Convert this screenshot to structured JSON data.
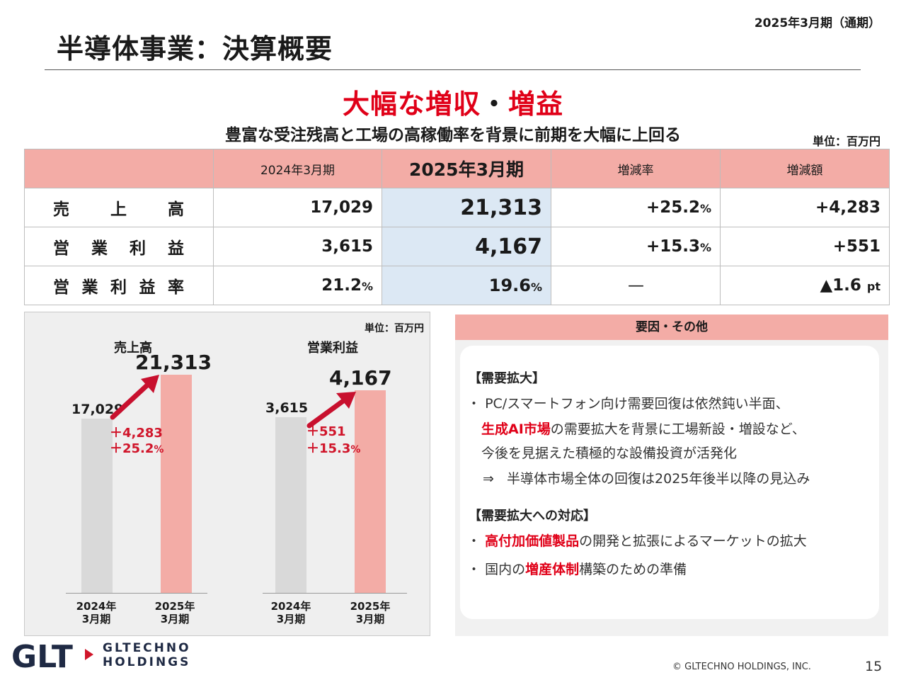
{
  "header": {
    "period": "2025年3月期（通期）",
    "title": "半導体事業：決算概要",
    "headline_part1": "大幅な増収",
    "headline_sep": "・",
    "headline_part2": "増益",
    "subheadline": "豊富な受注残高と工場の高稼働率を背景に前期を大幅に上回る",
    "unit": "単位：百万円"
  },
  "table": {
    "columns": [
      "",
      "2024年3月期",
      "2025年3月期",
      "増減率",
      "増減額"
    ],
    "rows": [
      {
        "label_chars": [
          "売",
          "上",
          "高"
        ],
        "prev": "17,029",
        "cur": "21,313",
        "rate": "+25.2",
        "rate_unit": "%",
        "diff": "+4,283"
      },
      {
        "label_chars": [
          "営",
          "業",
          "利",
          "益"
        ],
        "prev": "3,615",
        "cur": "4,167",
        "rate": "+15.3",
        "rate_unit": "%",
        "diff": "+551"
      },
      {
        "label_chars": [
          "営",
          "業",
          "利",
          "益",
          "率"
        ],
        "prev": "21.2",
        "prev_unit": "%",
        "cur": "19.6",
        "cur_unit": "%",
        "rate": "—",
        "diff": "▲1.6",
        "diff_unit": "pt"
      }
    ]
  },
  "chart_data": {
    "type": "bar",
    "unit": "単位：百万円",
    "colors": {
      "prev": "#d9d9d9",
      "cur": "#f3aca6",
      "arrow": "#c8102e"
    },
    "charts": [
      {
        "title": "売上高",
        "categories": [
          "2024年\n3月期",
          "2025年\n3月期"
        ],
        "category_lines": [
          [
            "2024年",
            "3月期"
          ],
          [
            "2025年",
            "3月期"
          ]
        ],
        "values": [
          17029,
          21313
        ],
        "value_labels": [
          "17,029",
          "21,313"
        ],
        "change_amount": "＋4,283",
        "change_rate": "＋25.2",
        "change_rate_unit": "%"
      },
      {
        "title": "営業利益",
        "categories": [
          "2024年\n3月期",
          "2025年\n3月期"
        ],
        "category_lines": [
          [
            "2024年",
            "3月期"
          ],
          [
            "2025年",
            "3月期"
          ]
        ],
        "values": [
          3615,
          4167
        ],
        "value_labels": [
          "3,615",
          "4,167"
        ],
        "change_amount": "＋551",
        "change_rate": "＋15.3",
        "change_rate_unit": "%"
      }
    ]
  },
  "factors": {
    "header": "要因・その他",
    "section1_title": "【需要拡大】",
    "bullet": "・",
    "s1_line1": "PC/スマートフォン向け需要回復は依然鈍い半面、",
    "s1_line2_red": "生成AI市場",
    "s1_line2_rest": "の需要拡大を背景に工場新設・増設など、",
    "s1_line3": "今後を見据えた積極的な設備投資が活発化",
    "s1_arrow": "⇒",
    "s1_line4": "半導体市場全体の回復は2025年後半以降の見込み",
    "section2_title": "【需要拡大への対応】",
    "s2_b1_red": "高付加価値製品",
    "s2_b1_rest": "の開発と拡張によるマーケットの拡大",
    "s2_b2_pre": "国内の",
    "s2_b2_red": "増産体制",
    "s2_b2_rest": "構築のための準備"
  },
  "footer": {
    "logo_mark": "GLT",
    "logo_line1": "GLTECHNO",
    "logo_line2": "HOLDINGS",
    "copyright": "© GLTECHNO HOLDINGS, INC.",
    "page": "15"
  }
}
